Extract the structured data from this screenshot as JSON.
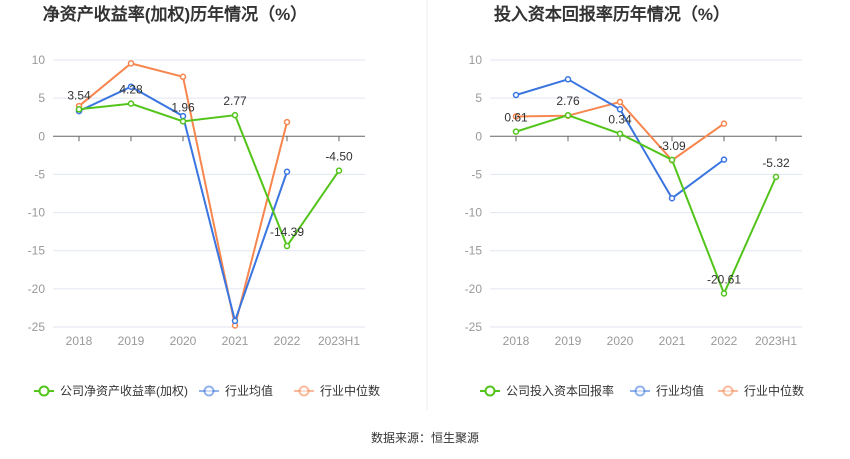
{
  "chart_data": [
    {
      "type": "line",
      "title": "净资产收益率(加权)历年情况（%）",
      "categories": [
        "2018",
        "2019",
        "2020",
        "2021",
        "2022",
        "2023H1"
      ],
      "ylim": [
        -25,
        10
      ],
      "yticks": [
        10,
        5,
        0,
        -5,
        -10,
        -15,
        -20,
        -25
      ],
      "grid": true,
      "legend_position": "bottom",
      "series": [
        {
          "name": "公司净资产收益率(加权)",
          "color": "#52c41a",
          "values": [
            3.54,
            4.28,
            1.96,
            2.77,
            -14.39,
            -4.5
          ],
          "labels": [
            "3.54",
            "4.28",
            "1.96",
            "2.77",
            "-14.39",
            "-4.50"
          ]
        },
        {
          "name": "行业均值",
          "color": "#3a75e0",
          "values": [
            3.3,
            6.5,
            2.65,
            -24.2,
            -4.65,
            null
          ]
        },
        {
          "name": "行业中位数",
          "color": "#f7864e",
          "values": [
            3.96,
            9.56,
            7.8,
            -24.8,
            1.86,
            null
          ]
        }
      ]
    },
    {
      "type": "line",
      "title": "投入资本回报率历年情况（%）",
      "categories": [
        "2018",
        "2019",
        "2020",
        "2021",
        "2022",
        "2023H1"
      ],
      "ylim": [
        -25,
        10
      ],
      "yticks": [
        10,
        5,
        0,
        -5,
        -10,
        -15,
        -20,
        -25
      ],
      "grid": true,
      "legend_position": "bottom",
      "series": [
        {
          "name": "公司投入资本回报率",
          "color": "#52c41a",
          "values": [
            0.61,
            2.76,
            0.34,
            -3.09,
            -20.61,
            -5.32
          ],
          "labels": [
            "0.61",
            "2.76",
            "0.34",
            "-3.09",
            "-20.61",
            "-5.32"
          ]
        },
        {
          "name": "行业均值",
          "color": "#3a75e0",
          "values": [
            5.41,
            7.47,
            3.54,
            -8.12,
            -3.06,
            null
          ]
        },
        {
          "name": "行业中位数",
          "color": "#f7864e",
          "values": [
            2.6,
            2.7,
            4.5,
            -3.14,
            1.66,
            null
          ]
        }
      ]
    }
  ],
  "source": "数据来源：恒生聚源"
}
